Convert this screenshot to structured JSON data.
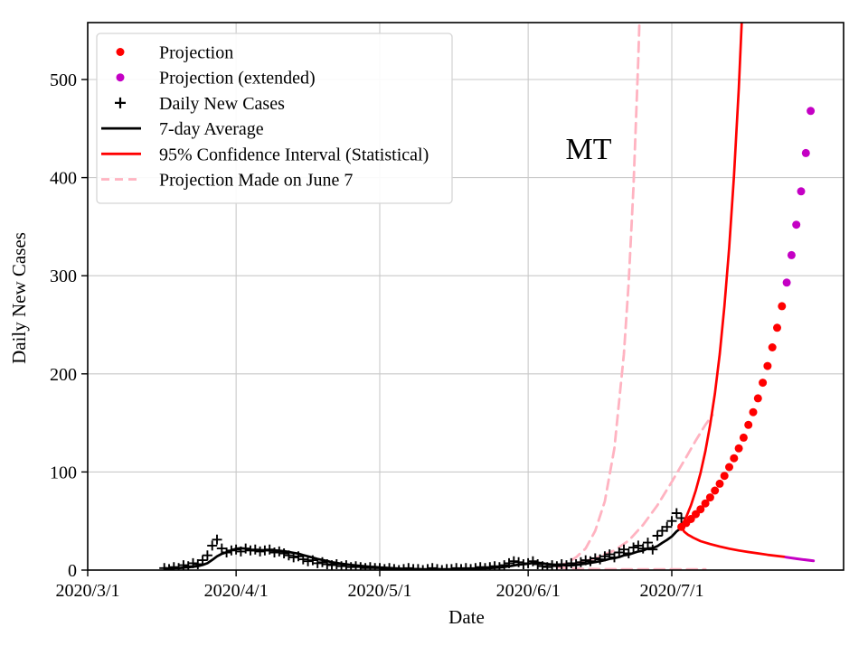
{
  "annotation": {
    "text": "MT"
  },
  "axes": {
    "xlabel": "Date",
    "ylabel": "Daily New Cases",
    "x_ticks": [
      {
        "day": 0,
        "label": "2020/3/1"
      },
      {
        "day": 31,
        "label": "2020/4/1"
      },
      {
        "day": 61,
        "label": "2020/5/1"
      },
      {
        "day": 92,
        "label": "2020/6/1"
      },
      {
        "day": 122,
        "label": "2020/7/1"
      }
    ],
    "y_ticks": [
      0,
      100,
      200,
      300,
      400,
      500
    ]
  },
  "legend": {
    "items": [
      {
        "marker": "dot",
        "color": "#ff0000",
        "label": "Projection"
      },
      {
        "marker": "dot",
        "color": "#c400c4",
        "label": "Projection (extended)"
      },
      {
        "marker": "plus",
        "color": "#000000",
        "label": "Daily New Cases"
      },
      {
        "marker": "line",
        "color": "#000000",
        "label": "7-day Average"
      },
      {
        "marker": "line",
        "color": "#ff0000",
        "label": "95% Confidence Interval (Statistical)"
      },
      {
        "marker": "dashed",
        "color": "#ffb3c1",
        "label": "Projection Made on June 7"
      }
    ]
  },
  "colors": {
    "projection": "#ff0000",
    "projection_extended": "#c400c4",
    "data": "#000000",
    "june7": "#ffb3c1",
    "grid": "#c9c9c9",
    "spine": "#000000"
  },
  "chart_data": {
    "type": "line+scatter",
    "title": "MT",
    "xlabel": "Date",
    "ylabel": "Daily New Cases",
    "x_unit": "days since 2020-03-01",
    "xlim_days": [
      0,
      158
    ],
    "ylim": [
      0,
      558
    ],
    "grid": true,
    "legend_position": "upper left",
    "series": [
      {
        "id": "june7_upper_ci",
        "name": "Projection Made on June 7 (upper CI)",
        "kind": "line",
        "color": "#ffb3c1",
        "width": 2.8,
        "dash": "11 7",
        "points": [
          [
            98,
            4
          ],
          [
            100,
            7
          ],
          [
            102,
            13
          ],
          [
            104,
            22
          ],
          [
            106,
            40
          ],
          [
            108,
            70
          ],
          [
            110,
            124
          ],
          [
            112,
            220
          ],
          [
            113,
            293
          ],
          [
            114,
            390
          ],
          [
            115,
            520
          ],
          [
            115.5,
            600
          ]
        ]
      },
      {
        "id": "june7_central",
        "name": "Projection Made on June 7 (central)",
        "kind": "line",
        "color": "#ffb3c1",
        "width": 2.8,
        "dash": "11 7",
        "points": [
          [
            98,
            4
          ],
          [
            102,
            7
          ],
          [
            106,
            12
          ],
          [
            110,
            20
          ],
          [
            113,
            30
          ],
          [
            116,
            46
          ],
          [
            119,
            66
          ],
          [
            122,
            90
          ],
          [
            125,
            115
          ],
          [
            127,
            132
          ],
          [
            129,
            148
          ],
          [
            130.5,
            158
          ]
        ]
      },
      {
        "id": "june7_lower_ci",
        "name": "Projection Made on June 7 (lower CI)",
        "kind": "line",
        "color": "#ffb3c1",
        "width": 2.8,
        "dash": "11 7",
        "points": [
          [
            98,
            3
          ],
          [
            100,
            2
          ],
          [
            103,
            1.2
          ],
          [
            107,
            0.9
          ],
          [
            112,
            0.8
          ],
          [
            118,
            0.8
          ],
          [
            129,
            0.8
          ]
        ]
      },
      {
        "id": "seven_day_average",
        "name": "7-day Average",
        "kind": "line",
        "color": "#000000",
        "width": 2.7,
        "derived_from": "daily_new_cases",
        "window": 7,
        "points": []
      },
      {
        "id": "daily_new_cases",
        "name": "Daily New Cases",
        "kind": "plus",
        "color": "#000000",
        "size": 5.5,
        "width": 1.9,
        "points": [
          [
            16,
            2
          ],
          [
            17,
            1
          ],
          [
            18,
            3
          ],
          [
            19,
            2
          ],
          [
            20,
            5
          ],
          [
            21,
            4
          ],
          [
            22,
            7
          ],
          [
            23,
            6
          ],
          [
            24,
            10
          ],
          [
            25,
            15
          ],
          [
            26,
            25
          ],
          [
            27,
            31
          ],
          [
            28,
            22
          ],
          [
            29,
            18
          ],
          [
            30,
            20
          ],
          [
            31,
            21
          ],
          [
            32,
            19
          ],
          [
            33,
            22
          ],
          [
            34,
            20
          ],
          [
            35,
            21
          ],
          [
            36,
            19
          ],
          [
            37,
            20
          ],
          [
            38,
            21
          ],
          [
            39,
            18
          ],
          [
            40,
            19
          ],
          [
            41,
            17
          ],
          [
            42,
            15
          ],
          [
            43,
            13
          ],
          [
            44,
            14
          ],
          [
            45,
            11
          ],
          [
            46,
            9
          ],
          [
            47,
            10
          ],
          [
            48,
            7
          ],
          [
            49,
            8
          ],
          [
            50,
            6
          ],
          [
            51,
            5
          ],
          [
            52,
            6
          ],
          [
            53,
            4
          ],
          [
            54,
            5
          ],
          [
            55,
            3
          ],
          [
            56,
            4
          ],
          [
            57,
            3
          ],
          [
            58,
            2
          ],
          [
            59,
            3
          ],
          [
            60,
            2
          ],
          [
            61,
            2
          ],
          [
            62,
            1
          ],
          [
            63,
            2
          ],
          [
            64,
            1
          ],
          [
            65,
            0
          ],
          [
            66,
            1
          ],
          [
            67,
            2
          ],
          [
            68,
            1
          ],
          [
            69,
            1
          ],
          [
            70,
            0
          ],
          [
            71,
            1
          ],
          [
            72,
            2
          ],
          [
            73,
            1
          ],
          [
            74,
            0
          ],
          [
            75,
            1
          ],
          [
            76,
            1
          ],
          [
            77,
            2
          ],
          [
            78,
            1
          ],
          [
            79,
            2
          ],
          [
            80,
            1
          ],
          [
            81,
            2
          ],
          [
            82,
            3
          ],
          [
            83,
            2
          ],
          [
            84,
            3
          ],
          [
            85,
            4
          ],
          [
            86,
            3
          ],
          [
            87,
            5
          ],
          [
            88,
            7
          ],
          [
            89,
            9
          ],
          [
            90,
            8
          ],
          [
            91,
            6
          ],
          [
            92,
            7
          ],
          [
            93,
            9
          ],
          [
            94,
            6
          ],
          [
            95,
            4
          ],
          [
            96,
            3
          ],
          [
            97,
            5
          ],
          [
            98,
            4
          ],
          [
            99,
            6
          ],
          [
            100,
            5
          ],
          [
            101,
            7
          ],
          [
            102,
            6
          ],
          [
            103,
            8
          ],
          [
            104,
            10
          ],
          [
            105,
            9
          ],
          [
            106,
            12
          ],
          [
            107,
            11
          ],
          [
            108,
            14
          ],
          [
            109,
            16
          ],
          [
            110,
            13
          ],
          [
            111,
            18
          ],
          [
            112,
            21
          ],
          [
            113,
            17
          ],
          [
            114,
            23
          ],
          [
            115,
            25
          ],
          [
            116,
            22
          ],
          [
            117,
            28
          ],
          [
            118,
            21
          ],
          [
            119,
            35
          ],
          [
            120,
            40
          ],
          [
            121,
            44
          ],
          [
            122,
            50
          ],
          [
            123,
            58
          ],
          [
            124,
            53
          ]
        ]
      },
      {
        "id": "ci_upper",
        "name": "95% Confidence Interval upper",
        "kind": "line",
        "color": "#ff0000",
        "width": 2.7,
        "points": [
          [
            124,
            44
          ],
          [
            125,
            54
          ],
          [
            126,
            66
          ],
          [
            127,
            81
          ],
          [
            128,
            99
          ],
          [
            129,
            121
          ],
          [
            130,
            148
          ],
          [
            131,
            180
          ],
          [
            132,
            220
          ],
          [
            133,
            269
          ],
          [
            134,
            329
          ],
          [
            135,
            402
          ],
          [
            136,
            491
          ],
          [
            136.8,
            580
          ]
        ]
      },
      {
        "id": "ci_lower",
        "name": "95% Confidence Interval lower",
        "kind": "line",
        "color": "#ff0000",
        "width": 2.7,
        "points": [
          [
            124,
            44
          ],
          [
            124.6,
            39
          ],
          [
            125.4,
            36
          ],
          [
            126.5,
            33
          ],
          [
            128,
            29.5
          ],
          [
            130,
            26.5
          ],
          [
            132,
            24
          ],
          [
            134,
            21.8
          ],
          [
            136,
            20
          ],
          [
            138,
            18.4
          ],
          [
            140,
            17
          ],
          [
            142,
            15.6
          ],
          [
            144,
            14.4
          ],
          [
            145.6,
            13.4
          ]
        ]
      },
      {
        "id": "ci_lower_extended",
        "name": "CI lower (extended)",
        "kind": "line",
        "color": "#c400c4",
        "width": 3,
        "points": [
          [
            145.8,
            13.2
          ],
          [
            148,
            11.6
          ],
          [
            151.6,
            9.4
          ]
        ]
      },
      {
        "id": "projection",
        "name": "Projection",
        "kind": "dots",
        "color": "#ff0000",
        "size": 4.5,
        "points": [
          [
            124,
            44
          ],
          [
            125,
            48
          ],
          [
            126,
            52
          ],
          [
            127,
            57
          ],
          [
            128,
            62
          ],
          [
            129,
            68
          ],
          [
            130,
            74
          ],
          [
            131,
            81
          ],
          [
            132,
            88
          ],
          [
            133,
            96
          ],
          [
            134,
            105
          ],
          [
            135,
            114
          ],
          [
            136,
            124
          ],
          [
            137,
            135
          ],
          [
            138,
            148
          ],
          [
            139,
            161
          ],
          [
            140,
            175
          ],
          [
            141,
            191
          ],
          [
            142,
            208
          ],
          [
            143,
            227
          ],
          [
            144,
            247
          ],
          [
            145,
            269
          ]
        ]
      },
      {
        "id": "projection_extended",
        "name": "Projection (extended)",
        "kind": "dots",
        "color": "#c400c4",
        "size": 4.5,
        "points": [
          [
            146,
            293
          ],
          [
            147,
            321
          ],
          [
            148,
            352
          ],
          [
            149,
            386
          ],
          [
            150,
            425
          ],
          [
            151,
            468
          ]
        ]
      }
    ]
  }
}
